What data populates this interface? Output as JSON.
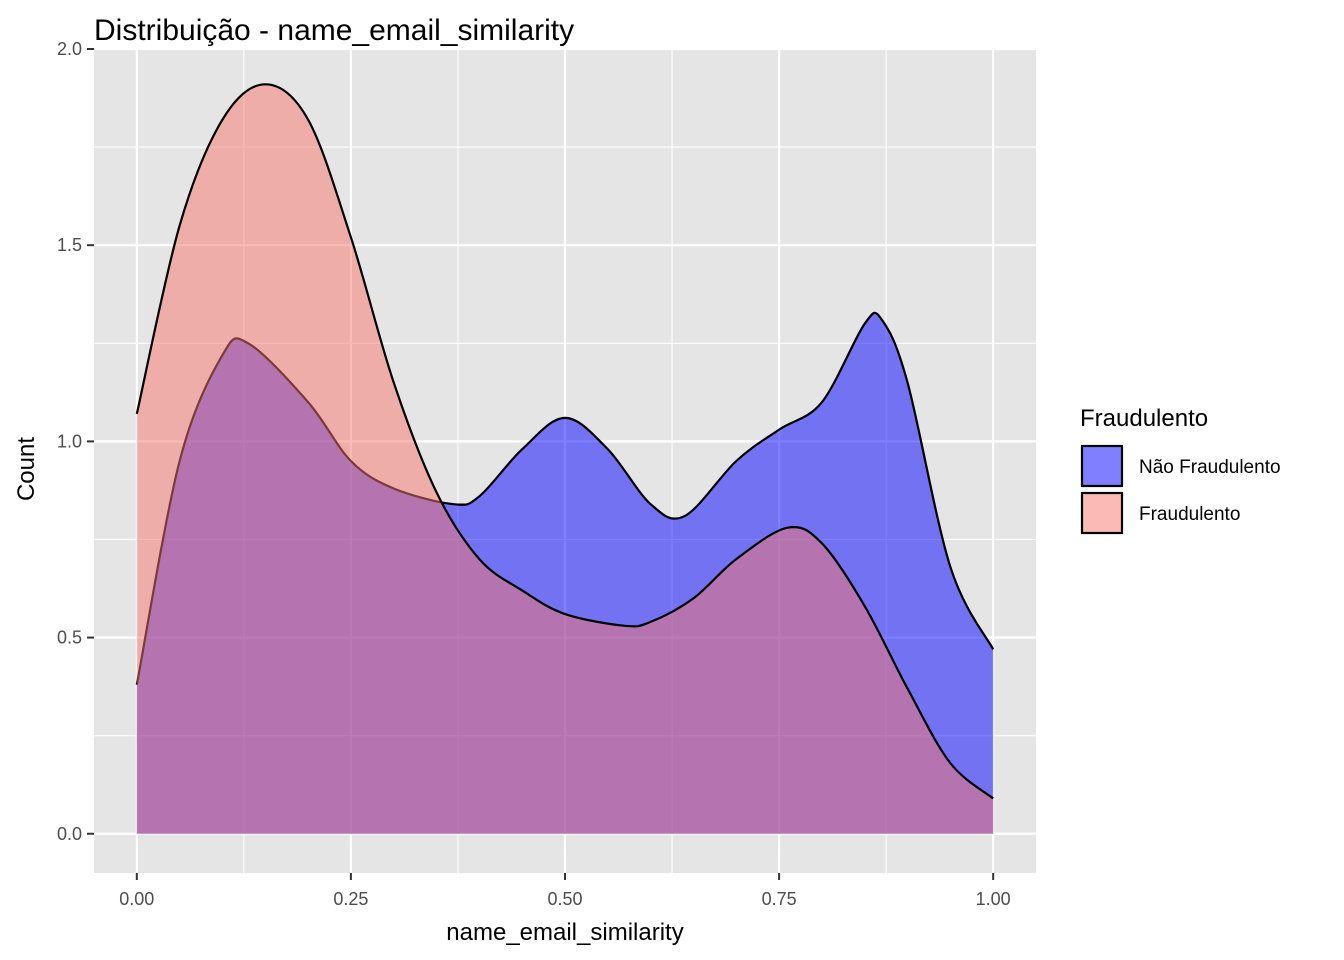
{
  "chart_data": {
    "type": "area",
    "title": "Distribuição - name_email_similarity",
    "xlabel": "name_email_similarity",
    "ylabel": "Count",
    "xlim": [
      -0.05,
      1.05
    ],
    "ylim": [
      -0.1,
      2.0
    ],
    "x_ticks": [
      0.0,
      0.25,
      0.5,
      0.75,
      1.0
    ],
    "x_tick_labels": [
      "0.00",
      "0.25",
      "0.50",
      "0.75",
      "1.00"
    ],
    "y_ticks": [
      0.0,
      0.5,
      1.0,
      1.5,
      2.0
    ],
    "y_tick_labels": [
      "0.0",
      "0.5",
      "1.0",
      "1.5",
      "2.0"
    ],
    "grid": true,
    "legend": {
      "title": "Fraudulento",
      "position": "right",
      "entries": [
        {
          "label": "Não Fraudulento",
          "color": "#0000FF",
          "opacity": 0.5
        },
        {
          "label": "Fraudulento",
          "color": "#F8766D",
          "opacity": 0.5
        }
      ]
    },
    "panel_background": "#e5e5e5",
    "series": [
      {
        "name": "Não Fraudulento",
        "color": "#0000FF",
        "x": [
          0.0,
          0.05,
          0.1,
          0.13,
          0.2,
          0.25,
          0.3,
          0.37,
          0.4,
          0.45,
          0.5,
          0.55,
          0.6,
          0.64,
          0.7,
          0.75,
          0.8,
          0.85,
          0.87,
          0.9,
          0.95,
          1.0
        ],
        "y": [
          0.38,
          0.95,
          1.22,
          1.25,
          1.1,
          0.95,
          0.88,
          0.84,
          0.86,
          0.98,
          1.06,
          0.98,
          0.84,
          0.81,
          0.95,
          1.03,
          1.1,
          1.3,
          1.31,
          1.15,
          0.68,
          0.47
        ]
      },
      {
        "name": "Fraudulento",
        "color": "#F8766D",
        "x": [
          0.0,
          0.05,
          0.1,
          0.15,
          0.2,
          0.25,
          0.3,
          0.35,
          0.4,
          0.45,
          0.5,
          0.57,
          0.6,
          0.65,
          0.7,
          0.76,
          0.8,
          0.85,
          0.9,
          0.95,
          1.0
        ],
        "y": [
          1.07,
          1.55,
          1.82,
          1.91,
          1.82,
          1.52,
          1.15,
          0.87,
          0.7,
          0.62,
          0.56,
          0.53,
          0.54,
          0.6,
          0.7,
          0.78,
          0.74,
          0.58,
          0.37,
          0.18,
          0.09
        ]
      }
    ]
  }
}
